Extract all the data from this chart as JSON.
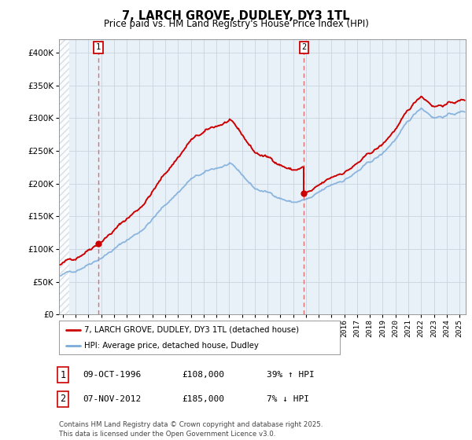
{
  "title": "7, LARCH GROVE, DUDLEY, DY3 1TL",
  "subtitle": "Price paid vs. HM Land Registry's House Price Index (HPI)",
  "ylim": [
    0,
    420000
  ],
  "yticks": [
    0,
    50000,
    100000,
    150000,
    200000,
    250000,
    300000,
    350000,
    400000
  ],
  "xlim_start": 1993.7,
  "xlim_end": 2025.5,
  "sale1_year": 1996.77,
  "sale1_price": 108000,
  "sale2_year": 2012.85,
  "sale2_price": 185000,
  "legend_label_red": "7, LARCH GROVE, DUDLEY, DY3 1TL (detached house)",
  "legend_label_blue": "HPI: Average price, detached house, Dudley",
  "footnote": "Contains HM Land Registry data © Crown copyright and database right 2025.\nThis data is licensed under the Open Government Licence v3.0.",
  "red_color": "#cc0000",
  "blue_color": "#7aabda",
  "bg_blue": "#e8f0f8",
  "hatch_color": "#d0d8e0",
  "grid_color": "#c8d4e0",
  "vline_color": "#e06060",
  "sale1_date": "09-OCT-1996",
  "sale2_date": "07-NOV-2012",
  "sale1_pct": "39% ↑ HPI",
  "sale2_pct": "7% ↓ HPI"
}
